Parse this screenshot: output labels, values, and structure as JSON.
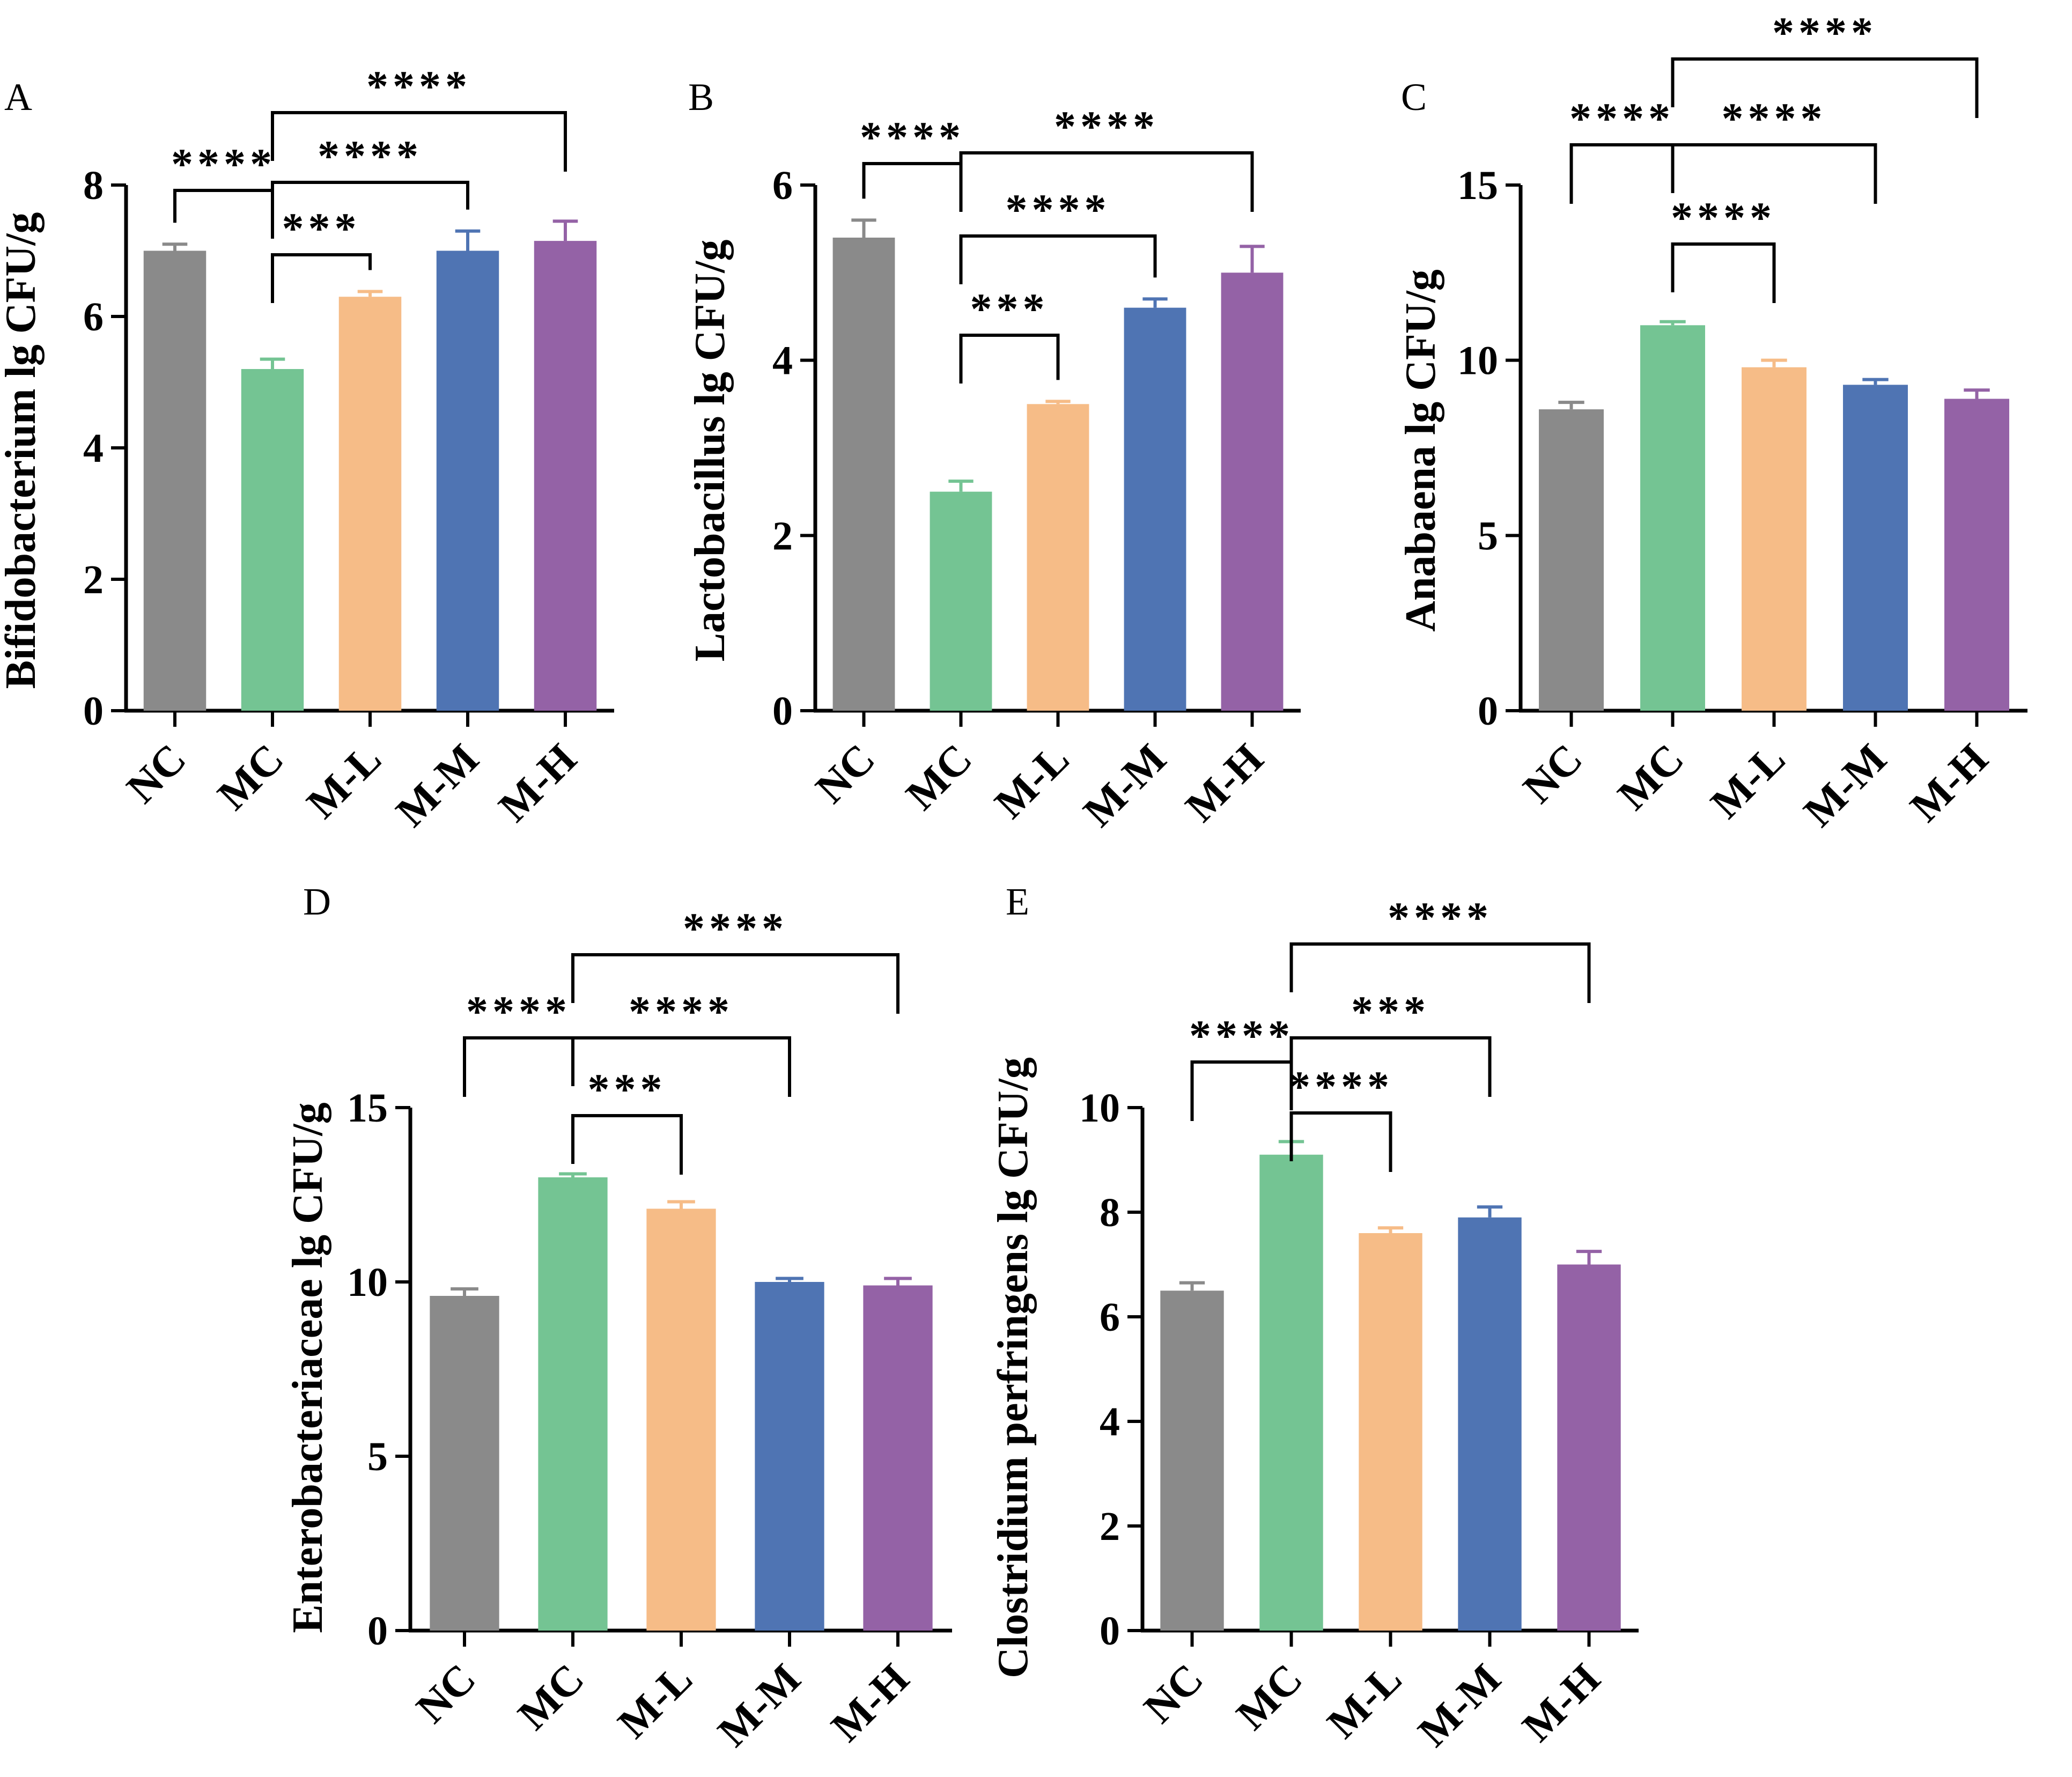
{
  "colors": {
    "NC": "#8a8a8a",
    "MC": "#74c493",
    "M-L": "#f6bc87",
    "M-M": "#4f74b3",
    "M-H": "#9462a6",
    "axis": "#000000"
  },
  "chart_data": [
    {
      "type": "bar",
      "panel": "A",
      "categories": [
        "NC",
        "MC",
        "M-L",
        "M-M",
        "M-H"
      ],
      "values": [
        7.0,
        5.2,
        6.3,
        7.0,
        7.15
      ],
      "errors": [
        0.1,
        0.15,
        0.08,
        0.3,
        0.3
      ],
      "ylabel": "Bifidobacterium lg CFU/g",
      "ylim": [
        0,
        8
      ],
      "yticks": [
        0,
        2,
        4,
        6,
        8
      ],
      "comparisons": [
        {
          "from": 0,
          "to": 1,
          "label": "****"
        },
        {
          "from": 1,
          "to": 2,
          "label": "***"
        },
        {
          "from": 1,
          "to": 3,
          "label": "****"
        },
        {
          "from": 1,
          "to": 4,
          "label": "****"
        }
      ]
    },
    {
      "type": "bar",
      "panel": "B",
      "categories": [
        "NC",
        "MC",
        "M-L",
        "M-M",
        "M-H"
      ],
      "values": [
        5.4,
        2.5,
        3.5,
        4.6,
        5.0
      ],
      "errors": [
        0.2,
        0.12,
        0.03,
        0.1,
        0.3
      ],
      "ylabel": "Lactobacillus lg CFU/g",
      "ylim": [
        0,
        6
      ],
      "yticks": [
        0,
        2,
        4,
        6
      ],
      "comparisons": [
        {
          "from": 0,
          "to": 1,
          "label": "****"
        },
        {
          "from": 1,
          "to": 2,
          "label": "***"
        },
        {
          "from": 1,
          "to": 3,
          "label": "****"
        },
        {
          "from": 1,
          "to": 4,
          "label": "****"
        }
      ]
    },
    {
      "type": "bar",
      "panel": "C",
      "categories": [
        "NC",
        "MC",
        "M-L",
        "M-M",
        "M-H"
      ],
      "values": [
        8.6,
        11.0,
        9.8,
        9.3,
        8.9
      ],
      "errors": [
        0.2,
        0.1,
        0.2,
        0.15,
        0.25
      ],
      "ylabel": "Anabaena lg CFU/g",
      "ylim": [
        0,
        15
      ],
      "yticks": [
        0,
        5,
        10,
        15
      ],
      "comparisons": [
        {
          "from": 0,
          "to": 1,
          "label": "****"
        },
        {
          "from": 1,
          "to": 2,
          "label": "****"
        },
        {
          "from": 1,
          "to": 3,
          "label": "****"
        },
        {
          "from": 1,
          "to": 4,
          "label": "****"
        }
      ]
    },
    {
      "type": "bar",
      "panel": "D",
      "categories": [
        "NC",
        "MC",
        "M-L",
        "M-M",
        "M-H"
      ],
      "values": [
        9.6,
        13.0,
        12.1,
        10.0,
        9.9
      ],
      "errors": [
        0.2,
        0.1,
        0.2,
        0.1,
        0.2
      ],
      "ylabel": "Enterobacteriaceae lg CFU/g",
      "ylim": [
        0,
        15
      ],
      "yticks": [
        0,
        5,
        10,
        15
      ],
      "comparisons": [
        {
          "from": 0,
          "to": 1,
          "label": "****"
        },
        {
          "from": 1,
          "to": 2,
          "label": "***"
        },
        {
          "from": 1,
          "to": 3,
          "label": "****"
        },
        {
          "from": 1,
          "to": 4,
          "label": "****"
        }
      ]
    },
    {
      "type": "bar",
      "panel": "E",
      "categories": [
        "NC",
        "MC",
        "M-L",
        "M-M",
        "M-H"
      ],
      "values": [
        6.5,
        9.1,
        7.6,
        7.9,
        7.0
      ],
      "errors": [
        0.15,
        0.25,
        0.1,
        0.2,
        0.25
      ],
      "ylabel": "Clostridium perfringens lg CFU/g",
      "ylim": [
        0,
        10
      ],
      "yticks": [
        0,
        2,
        4,
        6,
        8,
        10
      ],
      "comparisons": [
        {
          "from": 0,
          "to": 1,
          "label": "****"
        },
        {
          "from": 1,
          "to": 2,
          "label": "****"
        },
        {
          "from": 1,
          "to": 3,
          "label": "***"
        },
        {
          "from": 1,
          "to": 4,
          "label": "****"
        }
      ]
    }
  ]
}
